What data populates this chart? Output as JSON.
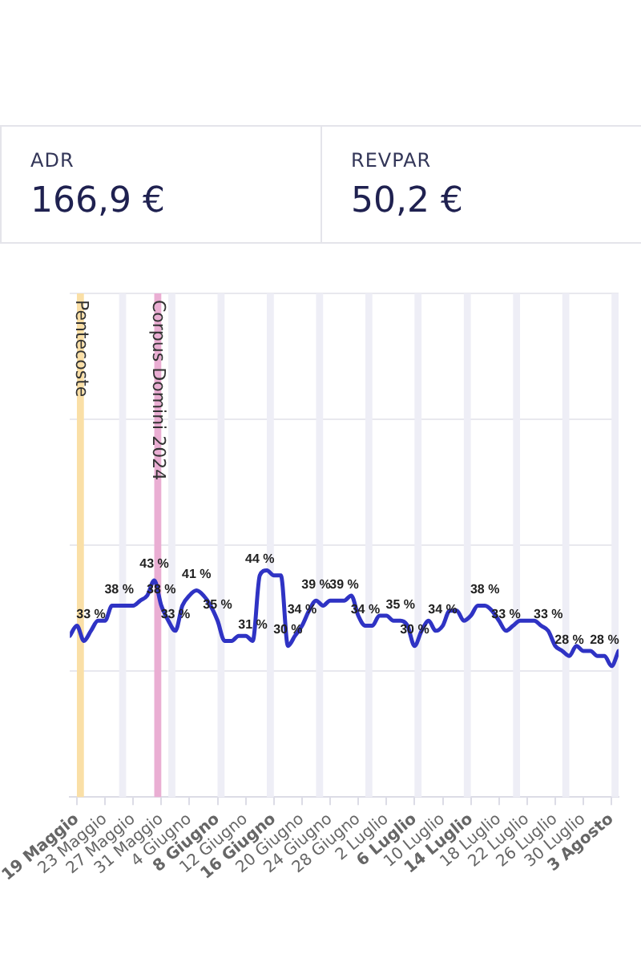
{
  "chart_data": {
    "type": "line",
    "annotations": [
      "ADR",
      "166,9 €",
      "REVPAR",
      "50,2 €"
    ],
    "x": [
      "2024-05-18",
      "2024-05-19",
      "2024-05-20",
      "2024-05-21",
      "2024-05-22",
      "2024-05-23",
      "2024-05-24",
      "2024-05-25",
      "2024-05-26",
      "2024-05-27",
      "2024-05-28",
      "2024-05-29",
      "2024-05-30",
      "2024-05-31",
      "2024-06-01",
      "2024-06-02",
      "2024-06-03",
      "2024-06-04",
      "2024-06-05",
      "2024-06-06",
      "2024-06-07",
      "2024-06-08",
      "2024-06-09",
      "2024-06-10",
      "2024-06-11",
      "2024-06-12",
      "2024-06-13",
      "2024-06-14",
      "2024-06-15",
      "2024-06-16",
      "2024-06-17",
      "2024-06-18",
      "2024-06-19",
      "2024-06-20",
      "2024-06-21",
      "2024-06-22",
      "2024-06-23",
      "2024-06-24",
      "2024-06-25",
      "2024-06-26",
      "2024-06-27",
      "2024-06-28",
      "2024-06-29",
      "2024-06-30",
      "2024-07-01",
      "2024-07-02",
      "2024-07-03",
      "2024-07-04",
      "2024-07-05",
      "2024-07-06",
      "2024-07-07",
      "2024-07-08",
      "2024-07-09",
      "2024-07-10",
      "2024-07-11",
      "2024-07-12",
      "2024-07-13",
      "2024-07-14",
      "2024-07-15",
      "2024-07-16",
      "2024-07-17",
      "2024-07-18",
      "2024-07-19",
      "2024-07-20",
      "2024-07-21",
      "2024-07-22",
      "2024-07-23",
      "2024-07-24",
      "2024-07-25",
      "2024-07-26",
      "2024-07-27",
      "2024-07-28",
      "2024-07-29",
      "2024-07-30",
      "2024-07-31",
      "2024-08-01",
      "2024-08-02",
      "2024-08-03",
      "2024-08-04"
    ],
    "values": [
      32,
      34,
      31,
      33,
      35,
      35,
      38,
      38,
      38,
      38,
      39,
      40,
      43,
      38,
      35,
      33,
      38,
      40,
      41,
      40,
      38,
      35,
      31,
      31,
      32,
      32,
      31,
      44,
      45,
      44,
      44,
      30,
      32,
      34,
      37,
      39,
      38,
      39,
      39,
      39,
      40,
      36,
      34,
      34,
      36,
      36,
      35,
      35,
      34,
      30,
      33,
      35,
      33,
      34,
      37,
      37,
      35,
      36,
      38,
      38,
      37,
      35,
      33,
      34,
      35,
      35,
      35,
      34,
      33,
      30,
      29,
      28,
      30,
      29,
      29,
      28,
      28,
      26,
      29
    ],
    "value_labels": [
      null,
      null,
      null,
      "33 %",
      null,
      null,
      null,
      "38 %",
      null,
      null,
      null,
      null,
      "43 %",
      "38 %",
      null,
      "33 %",
      null,
      null,
      "41 %",
      null,
      null,
      "35 %",
      null,
      null,
      null,
      null,
      "31 %",
      "44 %",
      null,
      null,
      null,
      "30 %",
      null,
      "34 %",
      null,
      "39 %",
      null,
      null,
      null,
      "39 %",
      null,
      null,
      "34 %",
      null,
      null,
      null,
      null,
      "35 %",
      null,
      "30 %",
      null,
      null,
      null,
      "34 %",
      null,
      null,
      null,
      null,
      null,
      "38 %",
      null,
      null,
      "33 %",
      null,
      null,
      null,
      null,
      null,
      "33 %",
      null,
      null,
      "28 %",
      null,
      null,
      null,
      null,
      "28 %",
      null,
      null
    ],
    "color": "#2f33c4",
    "marker": "none",
    "xlim": [
      "2024-05-18",
      "2024-08-04"
    ],
    "xticks": [
      {
        "value": "2024-05-19",
        "label": "19 Maggio"
      },
      {
        "value": "2024-05-23",
        "label": "23 Maggio"
      },
      {
        "value": "2024-05-27",
        "label": "27 Maggio"
      },
      {
        "value": "2024-05-31",
        "label": "31 Maggio"
      },
      {
        "value": "2024-06-04",
        "label": "4 Giugno"
      },
      {
        "value": "2024-06-08",
        "label": "8 Giugno"
      },
      {
        "value": "2024-06-12",
        "label": "12 Giugno"
      },
      {
        "value": "2024-06-16",
        "label": "16 Giugno"
      },
      {
        "value": "2024-06-20",
        "label": "20 Giugno"
      },
      {
        "value": "2024-06-24",
        "label": "24 Giugno"
      },
      {
        "value": "2024-06-28",
        "label": "28 Giugno"
      },
      {
        "value": "2024-07-02",
        "label": "2 Luglio"
      },
      {
        "value": "2024-07-06",
        "label": "6 Luglio"
      },
      {
        "value": "2024-07-10",
        "label": "10 Luglio"
      },
      {
        "value": "2024-07-14",
        "label": "14 Luglio"
      },
      {
        "value": "2024-07-18",
        "label": "18 Luglio"
      },
      {
        "value": "2024-07-22",
        "label": "22 Luglio"
      },
      {
        "value": "2024-07-26",
        "label": "26 Luglio"
      },
      {
        "value": "2024-07-30",
        "label": "30 Luglio"
      },
      {
        "value": "2024-08-03",
        "label": "3 Agosto"
      }
    ],
    "ylim": [
      0,
      100
    ],
    "yticks": [
      0,
      25,
      50,
      75,
      100
    ],
    "tick_labels": "x",
    "grid": "y",
    "bands": [
      {
        "axis": "x",
        "from": "2024-05-19",
        "to": "2024-05-20",
        "label": "Pentecoste",
        "color": "#fadfa6"
      },
      {
        "axis": "x",
        "from": "2024-05-30",
        "to": "2024-05-31",
        "label": "Corpus Domini 2024",
        "color": "#eaaed3"
      },
      {
        "axis": "x",
        "from": "2024-05-25",
        "to": "2024-05-26",
        "label": null,
        "color": "#eeeef6"
      },
      {
        "axis": "x",
        "from": "2024-06-01",
        "to": "2024-06-02",
        "label": null,
        "color": "#eeeef6"
      },
      {
        "axis": "x",
        "from": "2024-06-08",
        "to": "2024-06-09",
        "label": null,
        "color": "#eeeef6"
      },
      {
        "axis": "x",
        "from": "2024-06-15",
        "to": "2024-06-16",
        "label": null,
        "color": "#eeeef6"
      },
      {
        "axis": "x",
        "from": "2024-06-22",
        "to": "2024-06-23",
        "label": null,
        "color": "#eeeef6"
      },
      {
        "axis": "x",
        "from": "2024-06-29",
        "to": "2024-06-30",
        "label": null,
        "color": "#eeeef6"
      },
      {
        "axis": "x",
        "from": "2024-07-06",
        "to": "2024-07-07",
        "label": null,
        "color": "#eeeef6"
      },
      {
        "axis": "x",
        "from": "2024-07-13",
        "to": "2024-07-14",
        "label": null,
        "color": "#eeeef6"
      },
      {
        "axis": "x",
        "from": "2024-07-20",
        "to": "2024-07-21",
        "label": null,
        "color": "#eeeef6"
      },
      {
        "axis": "x",
        "from": "2024-07-27",
        "to": "2024-07-28",
        "label": null,
        "color": "#eeeef6"
      },
      {
        "axis": "x",
        "from": "2024-08-03",
        "to": "2024-08-04",
        "label": null,
        "color": "#eeeef6"
      }
    ]
  }
}
